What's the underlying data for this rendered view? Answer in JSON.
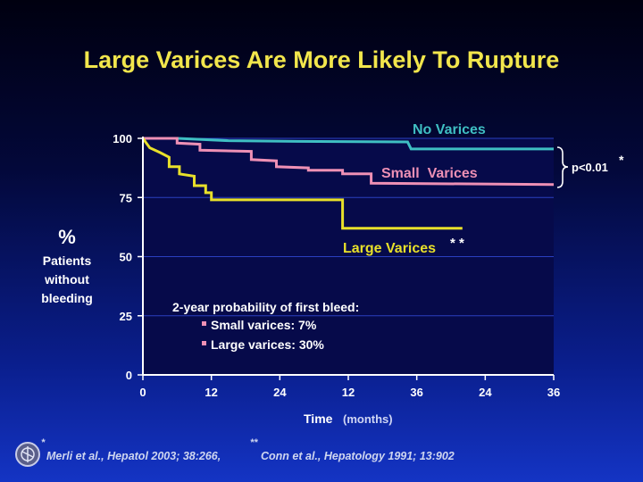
{
  "slide": {
    "title": "Large Varices Are More Likely To Rupture"
  },
  "chart_data": {
    "type": "line",
    "title": "Large Varices Are More Likely To Rupture",
    "ylabel_lines": [
      "%",
      "Patients",
      "without",
      "bleeding"
    ],
    "xlabel": "Time",
    "xlabel_unit": "(months)",
    "ylim": [
      0,
      100
    ],
    "xlim": [
      0,
      36
    ],
    "yticks": [
      "0",
      "25",
      "50",
      "75",
      "100"
    ],
    "xticks": [
      "0",
      "12",
      "24",
      "12",
      "36",
      "24",
      "36"
    ],
    "series": [
      {
        "name": "No Varices",
        "color": "#3fbfc3",
        "points": [
          [
            0,
            100
          ],
          [
            3,
            100
          ],
          [
            7.5,
            99
          ],
          [
            13.5,
            98.7
          ],
          [
            23.2,
            98.5
          ],
          [
            23.5,
            95.5
          ],
          [
            36,
            95.5
          ]
        ]
      },
      {
        "name": "Small Varices",
        "color": "#ee90b5",
        "points": [
          [
            0,
            100
          ],
          [
            3,
            100
          ],
          [
            3,
            98
          ],
          [
            5,
            97.5
          ],
          [
            5,
            95
          ],
          [
            9.5,
            94.5
          ],
          [
            9.5,
            91
          ],
          [
            11.7,
            90.5
          ],
          [
            11.7,
            88
          ],
          [
            14.5,
            87.5
          ],
          [
            14.5,
            86.5
          ],
          [
            17.5,
            86.5
          ],
          [
            17.5,
            85
          ],
          [
            20,
            85
          ],
          [
            20,
            81
          ],
          [
            36,
            80.5
          ]
        ]
      },
      {
        "name": "Large Varices",
        "color": "#e8e02a",
        "points": [
          [
            0,
            100
          ],
          [
            0.6,
            96
          ],
          [
            1.5,
            94
          ],
          [
            2.3,
            92
          ],
          [
            2.3,
            88
          ],
          [
            3.2,
            88
          ],
          [
            3.2,
            85
          ],
          [
            4.5,
            84
          ],
          [
            4.5,
            80
          ],
          [
            5.5,
            80
          ],
          [
            5.5,
            77
          ],
          [
            6,
            77
          ],
          [
            6,
            74
          ],
          [
            17.5,
            74
          ],
          [
            17.5,
            62
          ],
          [
            28,
            62
          ]
        ]
      }
    ],
    "annotations": {
      "no_varices": "No Varices",
      "small_varices": "Small  Varices",
      "large_varices": "Large Varices",
      "large_stars": "* *",
      "pvalue": "p<0.01",
      "pvalue_star": "*",
      "prob_title": "2-year probability of first bleed:",
      "prob_small": "Small varices: 7%",
      "prob_large": "Large varices: 30%"
    }
  },
  "references": {
    "ref1_star": "*",
    "ref1": "Merli et al., Hepatol 2003; 38:266,",
    "ref2_star": "**",
    "ref2": "Conn et al., Hepatology 1991; 13:902"
  },
  "colors": {
    "title": "#f2e64c",
    "axis_text": "#ffffff",
    "gridline": "#2a3fc0",
    "plot_bg": "#060a4a"
  }
}
